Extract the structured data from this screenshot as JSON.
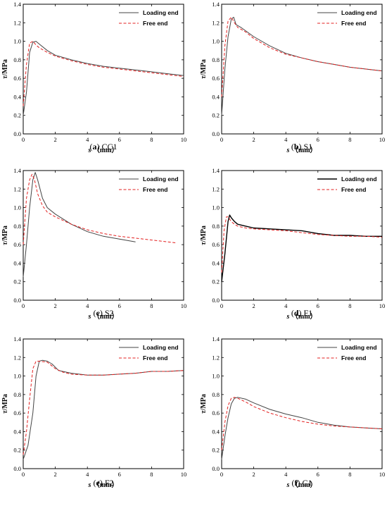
{
  "chart_data": [
    {
      "type": "line",
      "caption_tag": "a",
      "caption_name": "CC1",
      "ylabel_sym": "τ",
      "ylabel_unit": "/MPa",
      "xlabel_sym": "s",
      "xlabel_unit": "（mm）",
      "xlim": [
        0,
        10
      ],
      "ylim": [
        0,
        1.4
      ],
      "xticks": [
        "0",
        "2",
        "4",
        "6",
        "8",
        "10"
      ],
      "yticks": [
        "0.0",
        "0.2",
        "0.4",
        "0.6",
        "0.8",
        "1.0",
        "1.2",
        "1.4"
      ],
      "legend_position": "top-right",
      "series": [
        {
          "name": "Loading end",
          "color": "#444444",
          "dash": "solid",
          "x": [
            0,
            0.2,
            0.4,
            0.6,
            0.8,
            1.0,
            1.5,
            2,
            3,
            4,
            5,
            6,
            7,
            8,
            9,
            10
          ],
          "y": [
            0.2,
            0.45,
            0.88,
            0.99,
            1.0,
            0.97,
            0.9,
            0.85,
            0.8,
            0.76,
            0.73,
            0.71,
            0.69,
            0.67,
            0.65,
            0.63
          ]
        },
        {
          "name": "Free end",
          "color": "#e32020",
          "dash": "dashed",
          "x": [
            0,
            0.2,
            0.4,
            0.6,
            0.8,
            1.0,
            1.5,
            2,
            3,
            4,
            5,
            6,
            7,
            8,
            9,
            10
          ],
          "y": [
            0.3,
            0.75,
            0.98,
            1.0,
            0.96,
            0.93,
            0.88,
            0.84,
            0.79,
            0.75,
            0.72,
            0.7,
            0.68,
            0.66,
            0.64,
            0.62
          ]
        }
      ]
    },
    {
      "type": "line",
      "caption_tag": "b",
      "caption_name": "S1",
      "ylabel_sym": "τ",
      "ylabel_unit": "/MPa",
      "xlabel_sym": "s",
      "xlabel_unit": "（mm）",
      "xlim": [
        0,
        10
      ],
      "ylim": [
        0,
        1.4
      ],
      "xticks": [
        "0",
        "2",
        "4",
        "6",
        "8",
        "10"
      ],
      "yticks": [
        "0.0",
        "0.2",
        "0.4",
        "0.6",
        "0.8",
        "1.0",
        "1.2",
        "1.4"
      ],
      "legend_position": "top-right",
      "series": [
        {
          "name": "Loading end",
          "color": "#444444",
          "dash": "solid",
          "x": [
            0,
            0.2,
            0.4,
            0.6,
            0.75,
            0.9,
            1.2,
            2,
            3,
            4,
            5,
            6,
            7,
            8,
            9,
            10
          ],
          "y": [
            0.2,
            0.7,
            1.05,
            1.24,
            1.26,
            1.18,
            1.15,
            1.05,
            0.95,
            0.87,
            0.82,
            0.78,
            0.75,
            0.72,
            0.7,
            0.68
          ]
        },
        {
          "name": "Free end",
          "color": "#e32020",
          "dash": "dashed",
          "x": [
            0,
            0.2,
            0.4,
            0.6,
            0.8,
            1.0,
            1.5,
            2,
            3,
            4,
            5,
            6,
            7,
            8,
            9,
            10
          ],
          "y": [
            0.4,
            0.95,
            1.22,
            1.26,
            1.2,
            1.15,
            1.1,
            1.03,
            0.93,
            0.86,
            0.82,
            0.78,
            0.75,
            0.72,
            0.7,
            0.68
          ]
        }
      ]
    },
    {
      "type": "line",
      "caption_tag": "c",
      "caption_name": "S2",
      "ylabel_sym": "τ",
      "ylabel_unit": "/MPa",
      "xlabel_sym": "s",
      "xlabel_unit": "（mm）",
      "xlim": [
        0,
        10
      ],
      "ylim": [
        0,
        1.4
      ],
      "xticks": [
        "0",
        "2",
        "4",
        "6",
        "8",
        "10"
      ],
      "yticks": [
        "0.0",
        "0.2",
        "0.4",
        "0.6",
        "0.8",
        "1.0",
        "1.2",
        "1.4"
      ],
      "legend_position": "top-right",
      "series": [
        {
          "name": "Loading end",
          "color": "#444444",
          "dash": "solid",
          "x": [
            0,
            0.2,
            0.4,
            0.6,
            0.75,
            0.9,
            1.2,
            1.5,
            2,
            3,
            4,
            5,
            6,
            7
          ],
          "y": [
            0.25,
            0.6,
            1.0,
            1.3,
            1.38,
            1.3,
            1.1,
            1.0,
            0.93,
            0.82,
            0.74,
            0.69,
            0.66,
            0.63
          ]
        },
        {
          "name": "Free end",
          "color": "#e32020",
          "dash": "dashed",
          "x": [
            0,
            0.2,
            0.4,
            0.55,
            0.7,
            0.9,
            1.2,
            1.5,
            2,
            3,
            4,
            5,
            6,
            7,
            8,
            9,
            9.5
          ],
          "y": [
            0.6,
            1.1,
            1.3,
            1.36,
            1.3,
            1.15,
            1.02,
            0.95,
            0.9,
            0.82,
            0.76,
            0.72,
            0.69,
            0.67,
            0.65,
            0.63,
            0.62
          ]
        }
      ]
    },
    {
      "type": "line",
      "caption_tag": "d",
      "caption_name": "F1",
      "ylabel_sym": "τ",
      "ylabel_unit": "/MPa",
      "xlabel_sym": "s",
      "xlabel_unit": "（mm）",
      "xlim": [
        0,
        10
      ],
      "ylim": [
        0,
        1.4
      ],
      "xticks": [
        "0",
        "2",
        "4",
        "6",
        "8",
        "10"
      ],
      "yticks": [
        "0.0",
        "0.2",
        "0.4",
        "0.6",
        "0.8",
        "1.0",
        "1.2",
        "1.4"
      ],
      "legend_position": "top-right",
      "series": [
        {
          "name": "Loading end",
          "color": "#000000",
          "dash": "solid",
          "x": [
            0,
            0.2,
            0.4,
            0.5,
            0.6,
            0.8,
            1.0,
            1.5,
            2,
            3,
            4,
            5,
            6,
            7,
            8,
            9,
            10
          ],
          "y": [
            0.2,
            0.5,
            0.85,
            0.92,
            0.89,
            0.85,
            0.82,
            0.8,
            0.78,
            0.77,
            0.76,
            0.75,
            0.72,
            0.7,
            0.7,
            0.69,
            0.69
          ]
        },
        {
          "name": "Free end",
          "color": "#e32020",
          "dash": "dashed",
          "x": [
            0,
            0.15,
            0.3,
            0.4,
            0.6,
            0.8,
            1.0,
            1.5,
            2,
            3,
            4,
            5,
            6,
            7,
            8,
            9,
            10
          ],
          "y": [
            0.3,
            0.75,
            0.9,
            0.9,
            0.85,
            0.82,
            0.8,
            0.78,
            0.77,
            0.76,
            0.75,
            0.73,
            0.71,
            0.7,
            0.69,
            0.69,
            0.68
          ]
        }
      ]
    },
    {
      "type": "line",
      "caption_tag": "e",
      "caption_name": "F2",
      "ylabel_sym": "τ",
      "ylabel_unit": "/MPa",
      "xlabel_sym": "s",
      "xlabel_unit": "（mm）",
      "xlim": [
        0,
        10
      ],
      "ylim": [
        0,
        1.4
      ],
      "xticks": [
        "0",
        "2",
        "4",
        "6",
        "8",
        "10"
      ],
      "yticks": [
        "0.0",
        "0.2",
        "0.4",
        "0.6",
        "0.8",
        "1.0",
        "1.2",
        "1.4"
      ],
      "legend_position": "top-right",
      "series": [
        {
          "name": "Loading end",
          "color": "#444444",
          "dash": "solid",
          "x": [
            0,
            0.3,
            0.6,
            0.8,
            1.0,
            1.2,
            1.5,
            1.8,
            2.2,
            3,
            4,
            5,
            6,
            7,
            8,
            9,
            10
          ],
          "y": [
            0.1,
            0.25,
            0.6,
            1.0,
            1.16,
            1.17,
            1.16,
            1.13,
            1.06,
            1.03,
            1.01,
            1.01,
            1.02,
            1.03,
            1.05,
            1.05,
            1.06
          ]
        },
        {
          "name": "Free end",
          "color": "#e32020",
          "dash": "dashed",
          "x": [
            0,
            0.2,
            0.4,
            0.6,
            0.8,
            1.0,
            1.5,
            2,
            2.5,
            3,
            4,
            5,
            6,
            7,
            8,
            9,
            10
          ],
          "y": [
            0.15,
            0.4,
            0.75,
            1.08,
            1.16,
            1.16,
            1.15,
            1.08,
            1.04,
            1.02,
            1.01,
            1.01,
            1.02,
            1.03,
            1.05,
            1.05,
            1.06
          ]
        }
      ]
    },
    {
      "type": "line",
      "caption_tag": "f",
      "caption_name": "C1",
      "ylabel_sym": "τ",
      "ylabel_unit": "/MPa",
      "xlabel_sym": "s",
      "xlabel_unit": "（mm）",
      "xlim": [
        0,
        10
      ],
      "ylim": [
        0,
        1.4
      ],
      "xticks": [
        "0",
        "2",
        "4",
        "6",
        "8",
        "10"
      ],
      "yticks": [
        "0.0",
        "0.2",
        "0.4",
        "0.6",
        "0.8",
        "1.0",
        "1.2",
        "1.4"
      ],
      "legend_position": "top-right",
      "series": [
        {
          "name": "Loading end",
          "color": "#444444",
          "dash": "solid",
          "x": [
            0,
            0.2,
            0.4,
            0.6,
            0.8,
            1.0,
            1.5,
            2,
            3,
            4,
            5,
            6,
            7,
            8,
            9,
            10
          ],
          "y": [
            0.1,
            0.35,
            0.55,
            0.7,
            0.76,
            0.77,
            0.75,
            0.71,
            0.64,
            0.59,
            0.55,
            0.5,
            0.47,
            0.45,
            0.44,
            0.43
          ]
        },
        {
          "name": "Free end",
          "color": "#e32020",
          "dash": "dashed",
          "x": [
            0,
            0.2,
            0.4,
            0.6,
            0.8,
            1.0,
            1.5,
            2,
            3,
            4,
            5,
            6,
            7,
            8,
            9,
            10
          ],
          "y": [
            0.2,
            0.5,
            0.68,
            0.76,
            0.77,
            0.76,
            0.72,
            0.67,
            0.6,
            0.55,
            0.51,
            0.48,
            0.46,
            0.45,
            0.44,
            0.43
          ]
        }
      ]
    }
  ]
}
